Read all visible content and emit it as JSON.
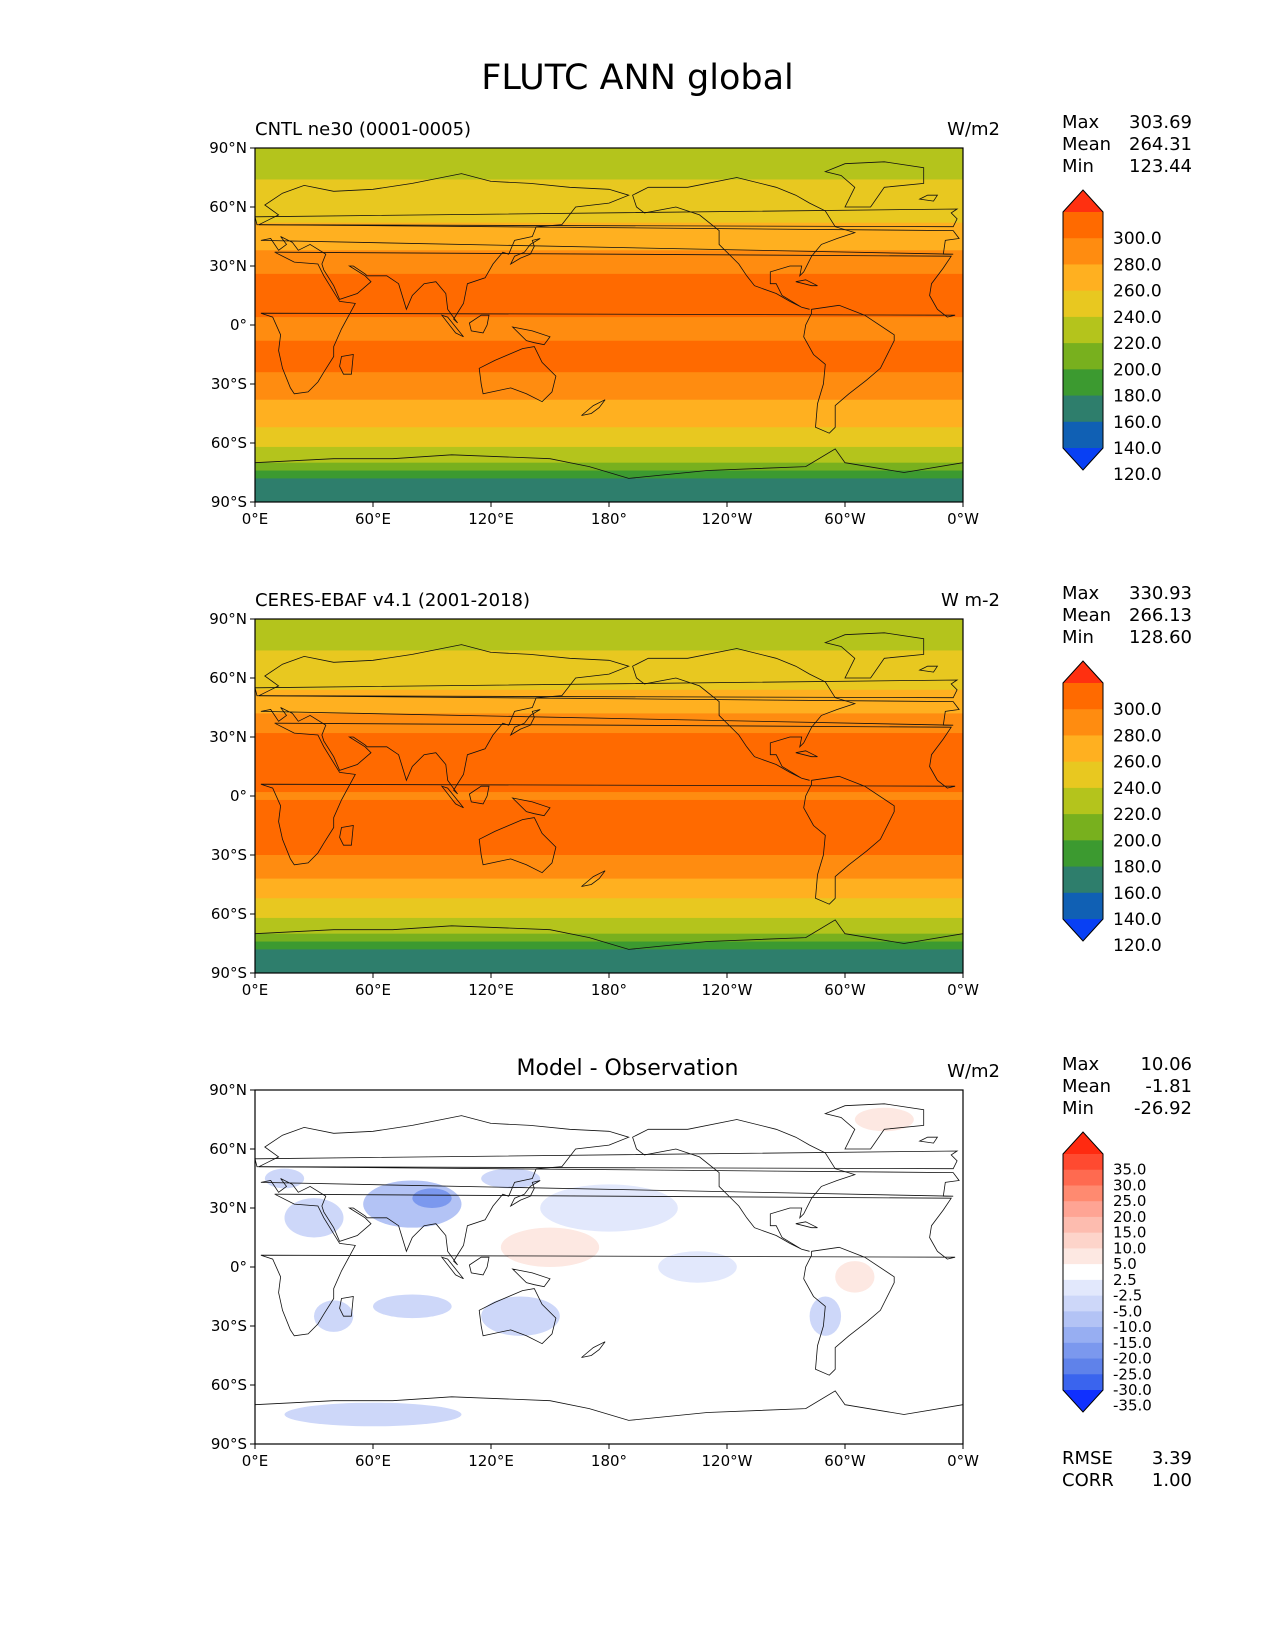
{
  "figure_title": "FLUTC ANN global",
  "chart_data": [
    {
      "type": "heatmap",
      "title": "CNTL ne30 (0001-0005)",
      "units": "W/m2",
      "stats": [
        {
          "label": "Max",
          "value": "303.69"
        },
        {
          "label": "Mean",
          "value": "264.31"
        },
        {
          "label": "Min",
          "value": "123.44"
        }
      ],
      "xticks": [
        "0°E",
        "60°E",
        "120°E",
        "180°",
        "120°W",
        "60°W",
        "0°W"
      ],
      "yticks": [
        "90°N",
        "60°N",
        "30°N",
        "0°",
        "30°S",
        "60°S",
        "90°S"
      ],
      "xlim": [
        0,
        360
      ],
      "ylim": [
        -90,
        90
      ],
      "colorbar": {
        "levels": [
          "300.0",
          "280.0",
          "260.0",
          "240.0",
          "220.0",
          "200.0",
          "180.0",
          "160.0",
          "140.0",
          "120.0"
        ],
        "colors": [
          "#ff3010",
          "#ff6a00",
          "#ff8c10",
          "#ffb020",
          "#e8c820",
          "#b4c41c",
          "#78b01e",
          "#3c9a30",
          "#2e7e6c",
          "#1060b4",
          "#0840f4"
        ],
        "extend": "both"
      },
      "zonal_profile": {
        "lat": [
          90,
          80,
          70,
          60,
          50,
          40,
          30,
          20,
          10,
          0,
          -10,
          -20,
          -30,
          -40,
          -50,
          -60,
          -70,
          -75,
          -80,
          -90
        ],
        "value": [
          205,
          210,
          225,
          232,
          242,
          255,
          275,
          285,
          285,
          275,
          282,
          285,
          272,
          258,
          242,
          226,
          200,
          170,
          150,
          150
        ]
      }
    },
    {
      "type": "heatmap",
      "title": "CERES-EBAF v4.1 (2001-2018)",
      "units": "W m-2",
      "stats": [
        {
          "label": "Max",
          "value": "330.93"
        },
        {
          "label": "Mean",
          "value": "266.13"
        },
        {
          "label": "Min",
          "value": "128.60"
        }
      ],
      "xticks": [
        "0°E",
        "60°E",
        "120°E",
        "180°",
        "120°W",
        "60°W",
        "0°W"
      ],
      "yticks": [
        "90°N",
        "60°N",
        "30°N",
        "0°",
        "30°S",
        "60°S",
        "90°S"
      ],
      "xlim": [
        0,
        360
      ],
      "ylim": [
        -90,
        90
      ],
      "colorbar": {
        "levels": [
          "300.0",
          "280.0",
          "260.0",
          "240.0",
          "220.0",
          "200.0",
          "180.0",
          "160.0",
          "140.0",
          "120.0"
        ],
        "colors": [
          "#ff3010",
          "#ff6a00",
          "#ff8c10",
          "#ffb020",
          "#e8c820",
          "#b4c41c",
          "#78b01e",
          "#3c9a30",
          "#2e7e6c",
          "#1060b4",
          "#0840f4"
        ],
        "extend": "both"
      },
      "zonal_profile": {
        "lat": [
          90,
          80,
          70,
          60,
          50,
          40,
          30,
          20,
          10,
          0,
          -10,
          -20,
          -30,
          -40,
          -50,
          -60,
          -70,
          -75,
          -80,
          -90
        ],
        "value": [
          205,
          212,
          226,
          233,
          245,
          262,
          282,
          292,
          290,
          278,
          287,
          290,
          280,
          262,
          244,
          228,
          200,
          170,
          152,
          150
        ]
      }
    },
    {
      "type": "heatmap",
      "title": "Model - Observation",
      "units": "W/m2",
      "stats": [
        {
          "label": "Max",
          "value": "10.06"
        },
        {
          "label": "Mean",
          "value": "-1.81"
        },
        {
          "label": "Min",
          "value": "-26.92"
        }
      ],
      "extra_stats": [
        {
          "label": "RMSE",
          "value": "3.39"
        },
        {
          "label": "CORR",
          "value": "1.00"
        }
      ],
      "xticks": [
        "0°E",
        "60°E",
        "120°E",
        "180°",
        "120°W",
        "60°W",
        "0°W"
      ],
      "yticks": [
        "90°N",
        "60°N",
        "30°N",
        "0°",
        "30°S",
        "60°S",
        "90°S"
      ],
      "xlim": [
        0,
        360
      ],
      "ylim": [
        -90,
        90
      ],
      "colorbar": {
        "levels": [
          "35.0",
          "30.0",
          "25.0",
          "20.0",
          "15.0",
          "10.0",
          "5.0",
          "2.5",
          "-2.5",
          "-5.0",
          "-10.0",
          "-15.0",
          "-20.0",
          "-25.0",
          "-30.0",
          "-35.0"
        ],
        "colors": [
          "#ff2a10",
          "#ff4a30",
          "#ff6a50",
          "#ff8a70",
          "#fea494",
          "#fdbcaf",
          "#fdd4ca",
          "#fde8e2",
          "#ffffff",
          "#e2e8fc",
          "#cdd7f9",
          "#b3c3f5",
          "#97aef2",
          "#7b98ee",
          "#5f82ea",
          "#3a64ee",
          "#1030ff"
        ],
        "extend": "both"
      }
    }
  ]
}
